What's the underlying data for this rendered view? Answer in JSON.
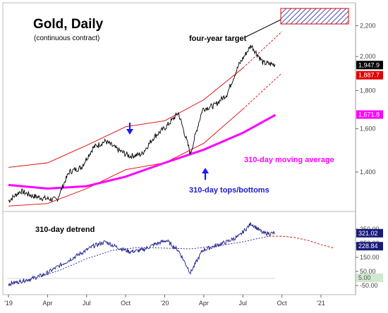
{
  "chart_data": [
    {
      "type": "line",
      "title": "Gold, Daily",
      "subtitle": "(continuous contract)",
      "y_scale": "log",
      "ylim": [
        1250,
        2300
      ],
      "y_ticks": [
        "1,400",
        "1,600",
        "1,800",
        "2,000",
        "2,200"
      ],
      "x_ticks": [
        "'19",
        "Apr",
        "Jul",
        "Oct",
        "'20",
        "Apr",
        "Jul",
        "Oct",
        "'21"
      ],
      "price_tags": [
        {
          "label": "1,947.9",
          "bg": "#000000",
          "fg": "#ffffff"
        },
        {
          "label": "1,887.7",
          "bg": "#e00000",
          "fg": "#ffffff"
        },
        {
          "label": "1,671.8",
          "bg": "#ff00ff",
          "fg": "#ffffff"
        }
      ],
      "annotations": {
        "target": "four-year target",
        "ma": "310-day moving average",
        "cycle": "310-day tops/bottoms"
      },
      "series": [
        {
          "color": "#000000",
          "x": [
            "'19",
            "Feb",
            "Mar",
            "Apr",
            "May",
            "Jun",
            "Jul",
            "Aug",
            "Sep",
            "Oct",
            "Nov",
            "Dec",
            "'20",
            "Feb",
            "Mar",
            "Mar",
            "Apr",
            "May",
            "Jun",
            "Jul",
            "Aug",
            "Aug",
            "Sep"
          ],
          "values": [
            1280,
            1320,
            1300,
            1290,
            1285,
            1400,
            1420,
            1510,
            1540,
            1500,
            1470,
            1480,
            1560,
            1610,
            1680,
            1480,
            1700,
            1720,
            1780,
            1950,
            2070,
            1960,
            1950
          ]
        },
        {
          "name": "310-day moving average",
          "color": "#ff00ff",
          "x": [
            "'19",
            "Apr",
            "Jul",
            "Oct",
            "'20",
            "Apr",
            "Jul",
            "Sep"
          ],
          "values": [
            1345,
            1330,
            1340,
            1380,
            1440,
            1500,
            1580,
            1670
          ]
        }
      ],
      "channel": {
        "color": "#e00000",
        "upper": [
          1420,
          1440,
          1520,
          1610,
          1640,
          1750,
          1930,
          2160
        ],
        "lower": [
          1260,
          1270,
          1330,
          1410,
          1440,
          1530,
          1700,
          1900
        ],
        "x": [
          "'19",
          "Apr",
          "Jul",
          "Oct",
          "'20",
          "Apr",
          "Jul",
          "Oct"
        ]
      }
    },
    {
      "type": "line",
      "title": "310-day detrend",
      "y_ticks": [
        "350.00",
        "250.00",
        "150.00",
        "50.00",
        "-50.00"
      ],
      "price_tags": [
        {
          "label": "321.02",
          "bg": "#1a1a7a",
          "fg": "#ffffff"
        },
        {
          "label": "228.84",
          "bg": "#1a1a7a",
          "fg": "#ffffff"
        },
        {
          "label": "5.00",
          "bg": "#cfe8cf",
          "fg": "#555555"
        }
      ],
      "series": [
        {
          "color": "#1a1a8a",
          "x": [
            "'19",
            "Feb",
            "Mar",
            "Apr",
            "May",
            "Jun",
            "Jul",
            "Aug",
            "Sep",
            "Oct",
            "Nov",
            "Dec",
            "'20",
            "Feb",
            "Mar",
            "Mar",
            "Apr",
            "May",
            "Jun",
            "Jul",
            "Aug",
            "Aug",
            "Sep"
          ],
          "values": [
            -40,
            -20,
            0,
            30,
            80,
            130,
            180,
            230,
            260,
            220,
            190,
            200,
            240,
            270,
            200,
            40,
            200,
            230,
            260,
            300,
            390,
            320,
            321
          ]
        }
      ]
    }
  ]
}
